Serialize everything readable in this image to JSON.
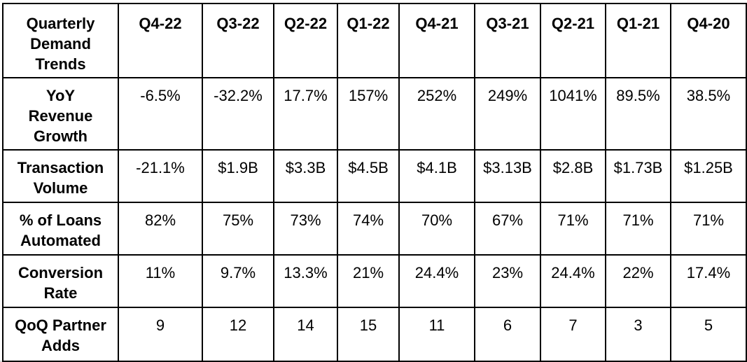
{
  "chart_data": {
    "type": "table",
    "title": "Quarterly Demand Trends",
    "columns": [
      "Q4-22",
      "Q3-22",
      "Q2-22",
      "Q1-22",
      "Q4-21",
      "Q3-21",
      "Q2-21",
      "Q1-21",
      "Q4-20"
    ],
    "rows": [
      {
        "label": "YoY\nRevenue\nGrowth",
        "metric": "YoY Revenue Growth",
        "values": [
          "-6.5%",
          "-32.2%",
          "17.7%",
          "157%",
          "252%",
          "249%",
          "1041%",
          "89.5%",
          "38.5%"
        ]
      },
      {
        "label": "Transaction\nVolume",
        "metric": "Transaction Volume",
        "values": [
          "-21.1%",
          "$1.9B",
          "$3.3B",
          "$4.5B",
          "$4.1B",
          "$3.13B",
          "$2.8B",
          "$1.73B",
          "$1.25B"
        ]
      },
      {
        "label": "% of Loans\nAutomated",
        "metric": "% of Loans Automated",
        "values": [
          "82%",
          "75%",
          "73%",
          "74%",
          "70%",
          "67%",
          "71%",
          "71%",
          "71%"
        ]
      },
      {
        "label": "Conversion\nRate",
        "metric": "Conversion Rate",
        "values": [
          "11%",
          "9.7%",
          "13.3%",
          "21%",
          "24.4%",
          "23%",
          "24.4%",
          "22%",
          "17.4%"
        ]
      },
      {
        "label": "QoQ Partner\nAdds",
        "metric": "QoQ Partner Adds",
        "values": [
          "9",
          "12",
          "14",
          "15",
          "11",
          "6",
          "7",
          "3",
          "5"
        ]
      }
    ],
    "layout": {
      "grid": "on",
      "header_position": "top-row-and-left-column"
    },
    "colors": {
      "border": "#000000",
      "text": "#000000",
      "background": "#ffffff"
    }
  }
}
